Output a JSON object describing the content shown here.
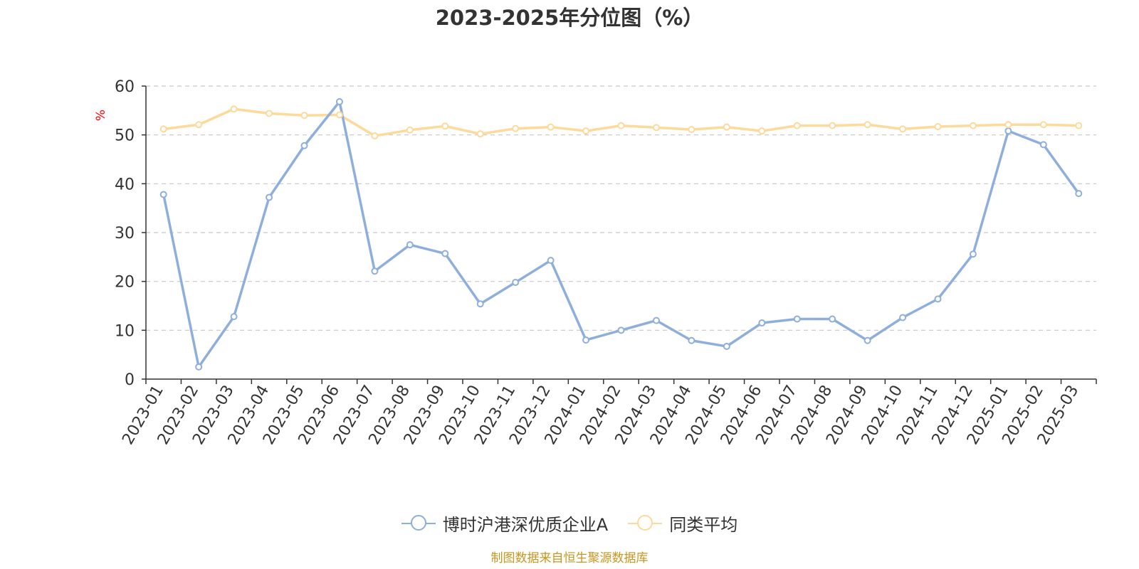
{
  "chart_data": {
    "type": "line",
    "title": "2023-2025年分位图（%）",
    "ylabel": "%",
    "ylim": [
      0,
      60
    ],
    "yticks": [
      0,
      10,
      20,
      30,
      40,
      50,
      60
    ],
    "grid": true,
    "legend_position": "bottom",
    "categories": [
      "2023-01",
      "2023-02",
      "2023-03",
      "2023-04",
      "2023-05",
      "2023-06",
      "2023-07",
      "2023-08",
      "2023-09",
      "2023-10",
      "2023-11",
      "2023-12",
      "2024-01",
      "2024-02",
      "2024-03",
      "2024-04",
      "2024-05",
      "2024-06",
      "2024-07",
      "2024-08",
      "2024-09",
      "2024-10",
      "2024-11",
      "2024-12",
      "2025-01",
      "2025-02",
      "2025-03"
    ],
    "series": [
      {
        "name": "博时沪港深优质企业A",
        "color": "#8eaedb",
        "values": [
          37.8,
          2.5,
          12.8,
          37.2,
          47.8,
          56.8,
          22.1,
          27.5,
          25.7,
          15.4,
          19.8,
          24.3,
          8.0,
          10.0,
          12.0,
          7.9,
          6.7,
          11.5,
          12.3,
          12.3,
          7.9,
          12.6,
          16.4,
          25.6,
          50.8,
          48.0,
          38.0
        ]
      },
      {
        "name": "同类平均",
        "color": "#fdd99a",
        "values": [
          51.2,
          52.1,
          55.3,
          54.4,
          54.0,
          54.1,
          49.8,
          51.0,
          51.8,
          50.2,
          51.3,
          51.6,
          50.8,
          51.9,
          51.5,
          51.1,
          51.6,
          50.8,
          51.9,
          51.9,
          52.1,
          51.2,
          51.7,
          51.9,
          52.1,
          52.1,
          51.9
        ]
      }
    ]
  },
  "source": "制图数据来自恒生聚源数据库"
}
